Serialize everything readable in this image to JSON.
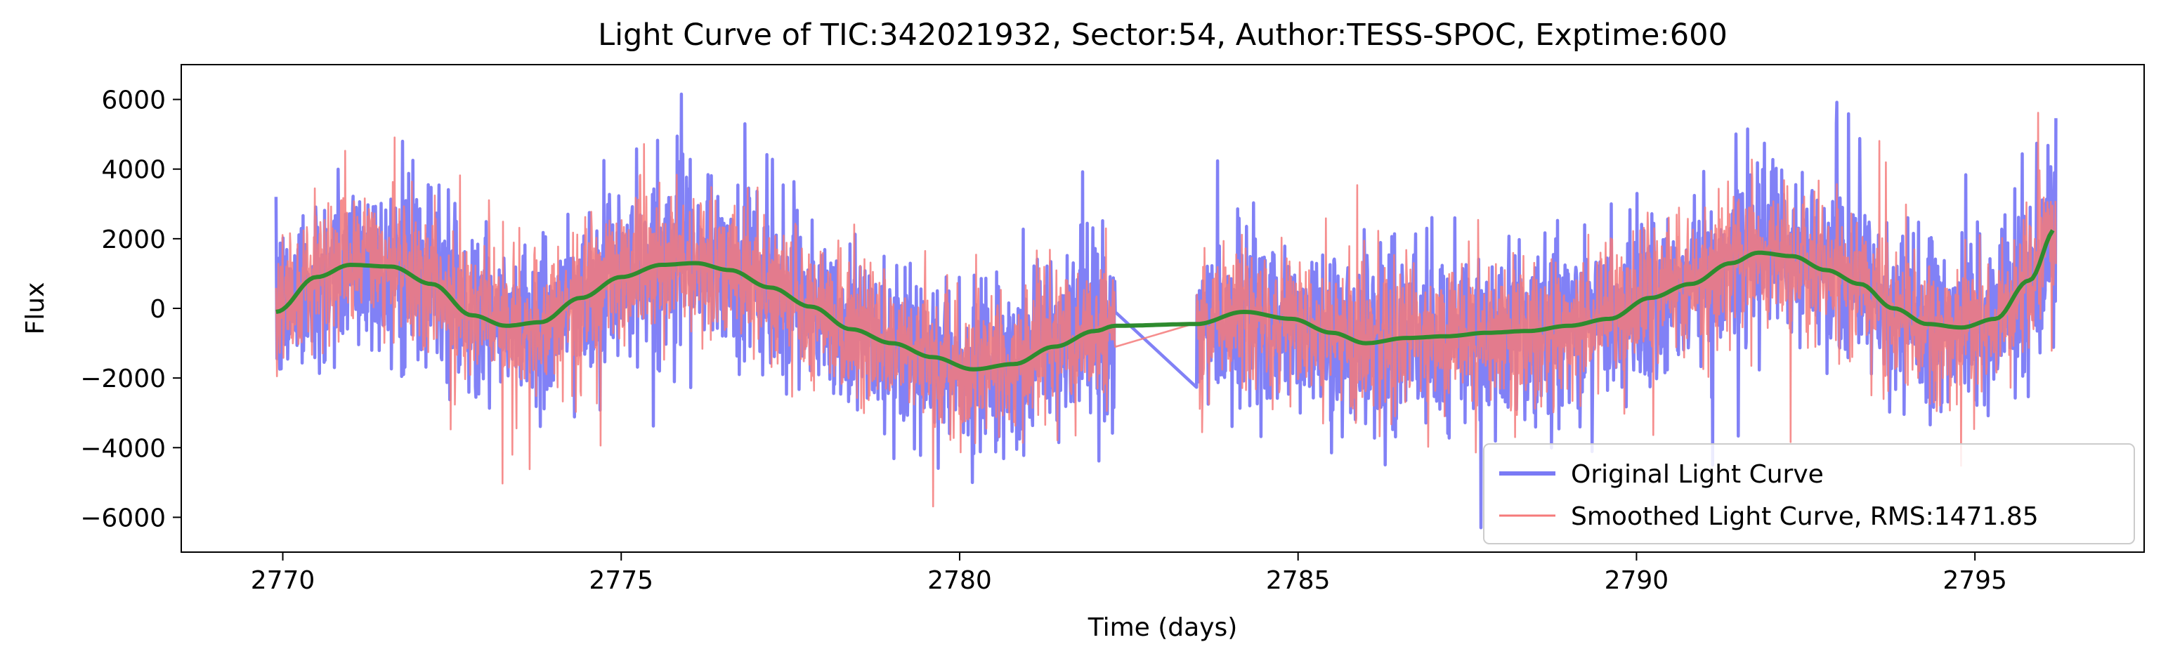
{
  "chart_data": {
    "type": "line",
    "title": "Light Curve of TIC:342021932, Sector:54, Author:TESS-SPOC, Exptime:600",
    "xlabel": "Time (days)",
    "ylabel": "Flux",
    "xlim": [
      2768.5,
      2797.5
    ],
    "ylim": [
      -7000,
      7000
    ],
    "x_ticks": [
      2770,
      2775,
      2780,
      2785,
      2790,
      2795
    ],
    "y_ticks": [
      -6000,
      -4000,
      -2000,
      0,
      2000,
      4000,
      6000
    ],
    "grid": false,
    "legend_position": "bottom-right",
    "segments": [
      [
        2769.9,
        2782.3
      ],
      [
        2783.5,
        2796.2
      ]
    ],
    "series": [
      {
        "name": "Original Light Curve",
        "color": "#7a7af5",
        "style": "noisy",
        "amplitude": 1700,
        "peak": [
          6300,
          -6400
        ]
      },
      {
        "name": "Smoothed Light Curve, RMS:1471.85",
        "color": "#f57a7a",
        "style": "noisy",
        "amplitude": 1450
      },
      {
        "name": "",
        "color": "#2e8b2e",
        "style": "trend",
        "x": [
          2769.9,
          2770.5,
          2771.0,
          2771.6,
          2772.2,
          2772.8,
          2773.3,
          2773.8,
          2774.4,
          2775.0,
          2775.6,
          2776.1,
          2776.6,
          2777.2,
          2777.8,
          2778.4,
          2779.0,
          2779.6,
          2780.2,
          2780.8,
          2781.4,
          2782.0,
          2782.3,
          2783.5,
          2784.2,
          2784.9,
          2785.5,
          2786.0,
          2786.6,
          2787.2,
          2787.8,
          2788.4,
          2789.0,
          2789.6,
          2790.2,
          2790.8,
          2791.4,
          2791.8,
          2792.3,
          2792.8,
          2793.3,
          2793.8,
          2794.3,
          2794.8,
          2795.3,
          2795.8,
          2796.2
        ],
        "y": [
          -100,
          900,
          1250,
          1200,
          700,
          -200,
          -500,
          -400,
          300,
          900,
          1250,
          1300,
          1100,
          600,
          50,
          -600,
          -1000,
          -1400,
          -1750,
          -1600,
          -1100,
          -650,
          -500,
          -450,
          -100,
          -300,
          -700,
          -1000,
          -850,
          -800,
          -700,
          -650,
          -500,
          -300,
          300,
          700,
          1300,
          1600,
          1500,
          1100,
          700,
          0,
          -450,
          -550,
          -300,
          800,
          2300
        ]
      }
    ]
  }
}
